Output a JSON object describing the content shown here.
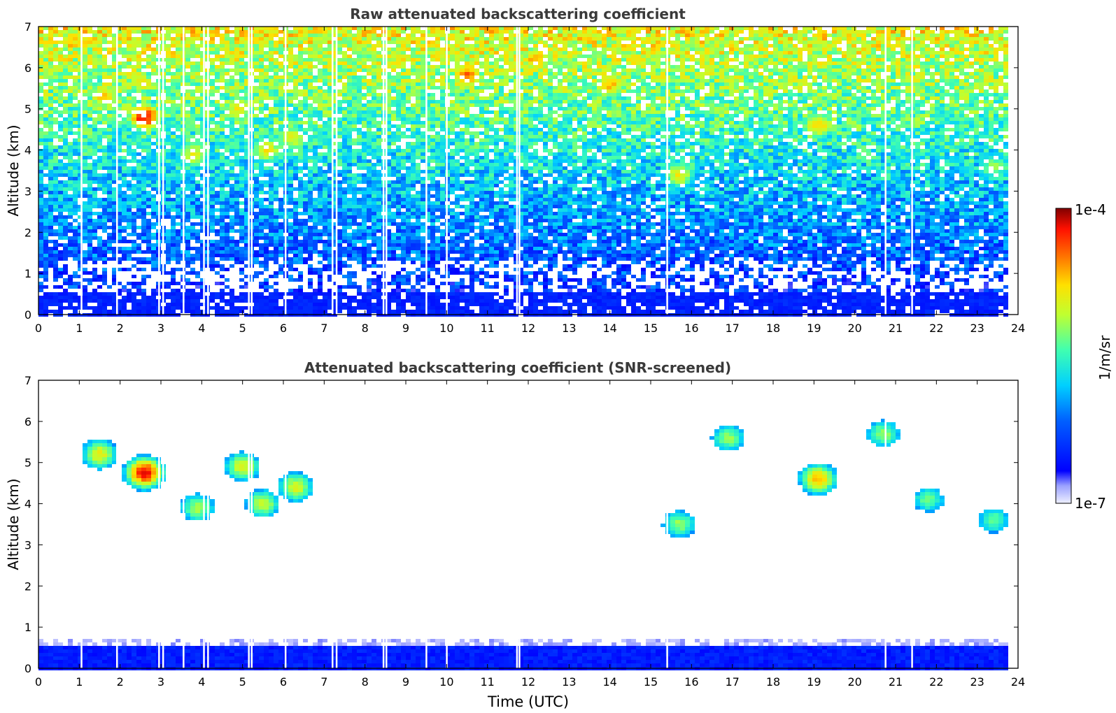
{
  "chart_data": [
    {
      "type": "heatmap",
      "title": "Raw attenuated backscattering coefficient",
      "xlabel": "",
      "ylabel": "Altitude (km)",
      "xlim": [
        0,
        24
      ],
      "ylim": [
        0,
        7
      ],
      "xticks": [
        "0",
        "1",
        "2",
        "3",
        "4",
        "5",
        "6",
        "7",
        "8",
        "9",
        "10",
        "11",
        "12",
        "13",
        "14",
        "15",
        "16",
        "17",
        "18",
        "19",
        "20",
        "21",
        "22",
        "23",
        "24"
      ],
      "yticks": [
        "0",
        "1",
        "2",
        "3",
        "4",
        "5",
        "6",
        "7"
      ],
      "data_end_time": 23.65,
      "colormap": "jet (log scale)",
      "gap_times": [
        1.05,
        1.92,
        2.95,
        3.05,
        3.55,
        4.05,
        4.15,
        5.15,
        5.22,
        6.05,
        7.2,
        7.3,
        8.45,
        8.52,
        9.5,
        10.0,
        11.72,
        11.78,
        15.4,
        20.75,
        21.4
      ],
      "features": [
        {
          "time": 2.6,
          "alt": 4.8,
          "level": 0.95
        },
        {
          "time": 1.6,
          "alt": 5.3,
          "level": 0.75
        },
        {
          "time": 3.8,
          "alt": 3.9,
          "level": 0.7
        },
        {
          "time": 4.9,
          "alt": 5.0,
          "level": 0.72
        },
        {
          "time": 5.6,
          "alt": 4.0,
          "level": 0.72
        },
        {
          "time": 6.2,
          "alt": 4.3,
          "level": 0.7
        },
        {
          "time": 15.7,
          "alt": 3.4,
          "level": 0.7
        },
        {
          "time": 19.1,
          "alt": 4.6,
          "level": 0.75
        },
        {
          "time": 23.4,
          "alt": 3.6,
          "level": 0.6
        },
        {
          "time": 17.0,
          "alt": 5.6,
          "level": 0.6
        },
        {
          "time": 10.5,
          "alt": 5.8,
          "level": 0.85
        },
        {
          "time": 12.2,
          "alt": 6.2,
          "level": 0.8
        },
        {
          "time": 14.0,
          "alt": 5.6,
          "level": 0.78
        }
      ]
    },
    {
      "type": "heatmap",
      "title": "Attenuated backscattering coefficient (SNR-screened)",
      "xlabel": "Time (UTC)",
      "ylabel": "Altitude (km)",
      "xlim": [
        0,
        24
      ],
      "ylim": [
        0,
        7
      ],
      "xticks": [
        "0",
        "1",
        "2",
        "3",
        "4",
        "5",
        "6",
        "7",
        "8",
        "9",
        "10",
        "11",
        "12",
        "13",
        "14",
        "15",
        "16",
        "17",
        "18",
        "19",
        "20",
        "21",
        "22",
        "23",
        "24"
      ],
      "yticks": [
        "0",
        "1",
        "2",
        "3",
        "4",
        "5",
        "6",
        "7"
      ],
      "data_end_time": 23.65,
      "colormap": "jet (log scale)",
      "features": [
        {
          "time": 2.6,
          "alt": 4.75,
          "level": 0.95
        },
        {
          "time": 1.5,
          "alt": 5.2,
          "level": 0.7
        },
        {
          "time": 3.9,
          "alt": 3.9,
          "level": 0.62
        },
        {
          "time": 5.0,
          "alt": 4.9,
          "level": 0.68
        },
        {
          "time": 5.5,
          "alt": 4.0,
          "level": 0.65
        },
        {
          "time": 6.3,
          "alt": 4.4,
          "level": 0.68
        },
        {
          "time": 15.7,
          "alt": 3.5,
          "level": 0.6
        },
        {
          "time": 19.1,
          "alt": 4.6,
          "level": 0.78
        },
        {
          "time": 23.4,
          "alt": 3.6,
          "level": 0.55
        },
        {
          "time": 16.9,
          "alt": 5.6,
          "level": 0.6
        },
        {
          "time": 20.7,
          "alt": 5.7,
          "level": 0.6
        },
        {
          "time": 21.8,
          "alt": 4.1,
          "level": 0.55
        }
      ]
    }
  ],
  "colorbar": {
    "label": "1/m/sr",
    "max_label": "1e-4",
    "min_label": "1e-7"
  }
}
